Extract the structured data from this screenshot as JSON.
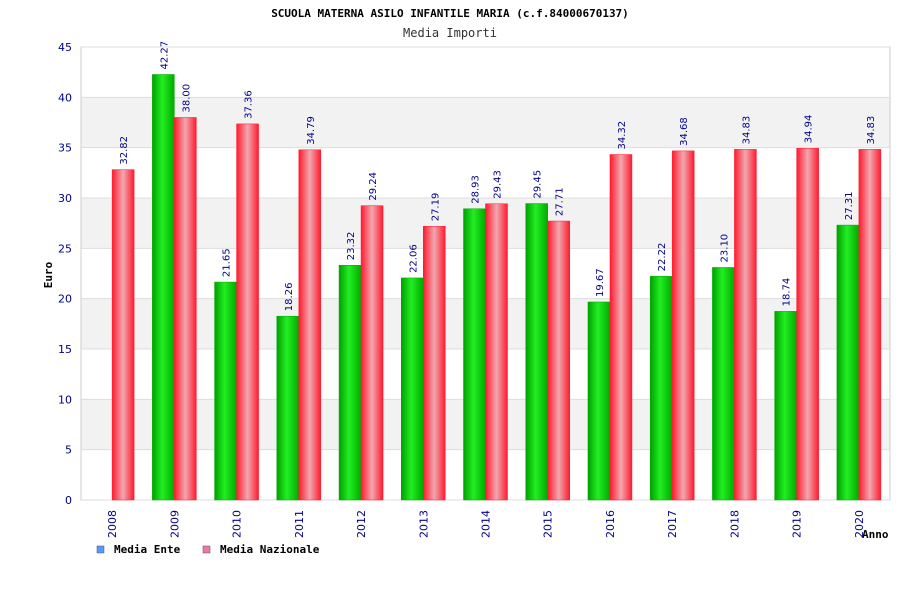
{
  "chart_data": {
    "type": "bar",
    "title": "SCUOLA MATERNA ASILO INFANTILE MARIA (c.f.84000670137)",
    "subtitle": "Media Importi",
    "xlabel": "Anno",
    "ylabel": "Euro",
    "ylim": [
      0,
      45
    ],
    "yticks": [
      0,
      5,
      10,
      15,
      20,
      25,
      30,
      35,
      40,
      45
    ],
    "grid": true,
    "legend_position": "bottom-left",
    "categories": [
      "2008",
      "2009",
      "2010",
      "2011",
      "2012",
      "2013",
      "2014",
      "2015",
      "2016",
      "2017",
      "2018",
      "2019",
      "2020"
    ],
    "series": [
      {
        "name": "Media Ente",
        "color": "#00cc00",
        "legend_color": "#5599ff",
        "values": [
          null,
          42.27,
          21.65,
          18.26,
          23.32,
          22.06,
          28.93,
          29.45,
          19.67,
          22.22,
          23.1,
          18.74,
          27.31
        ],
        "labels": [
          "",
          "42.27",
          "21.65",
          "18.26",
          "23.32",
          "22.06",
          "28.93",
          "29.45",
          "19.67",
          "22.22",
          "23.10",
          "18.74",
          "27.31"
        ]
      },
      {
        "name": "Media Nazionale",
        "color": "#ff2222",
        "legend_color": "#ee77aa",
        "values": [
          32.82,
          38.0,
          37.36,
          34.79,
          29.24,
          27.19,
          29.43,
          27.71,
          34.32,
          34.68,
          34.83,
          34.94,
          34.83
        ],
        "labels": [
          "32.82",
          "38.00",
          "37.36",
          "34.79",
          "29.24",
          "27.19",
          "29.43",
          "27.71",
          "34.32",
          "34.68",
          "34.83",
          "34.94",
          "34.83"
        ]
      }
    ]
  }
}
